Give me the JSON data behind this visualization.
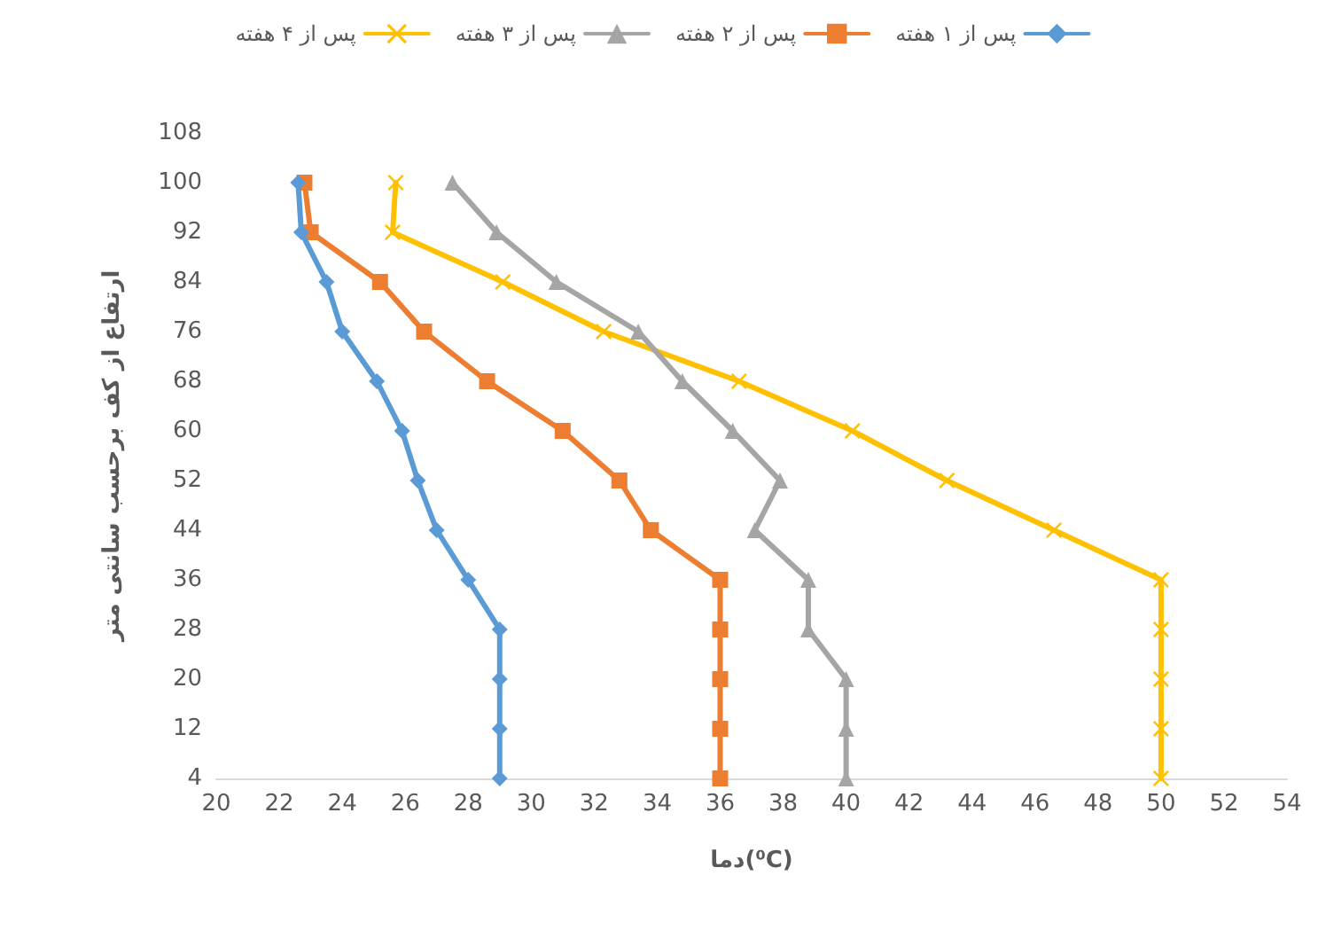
{
  "chart_data": {
    "type": "line",
    "xlabel": "دما(⁰C)",
    "ylabel": "ارتفاع از کف برحسب سانتی متر",
    "xlim": [
      20,
      54
    ],
    "xticks": [
      20,
      22,
      24,
      26,
      28,
      30,
      32,
      34,
      36,
      38,
      40,
      42,
      44,
      46,
      48,
      50,
      52,
      54
    ],
    "ylim": [
      4,
      108
    ],
    "yticks": [
      4,
      12,
      20,
      28,
      36,
      44,
      52,
      60,
      68,
      76,
      84,
      92,
      100,
      108
    ],
    "grid": false,
    "legend": "top",
    "series": [
      {
        "name": "پس از ۱ هفته",
        "color": "#5b9bd5",
        "marker": "diamond",
        "x": [
          29,
          29,
          29,
          29,
          28,
          27,
          26.4,
          25.9,
          25.1,
          24,
          23.5,
          22.7,
          22.6
        ],
        "values": [
          4,
          12,
          20,
          28,
          36,
          44,
          52,
          60,
          68,
          76,
          84,
          92,
          100
        ]
      },
      {
        "name": "پس از ۲ هفته",
        "color": "#ed7d31",
        "marker": "square",
        "x": [
          36,
          36,
          36,
          36,
          36,
          33.8,
          32.8,
          31,
          28.6,
          26.6,
          25.2,
          23,
          22.8
        ],
        "values": [
          4,
          12,
          20,
          28,
          36,
          44,
          52,
          60,
          68,
          76,
          84,
          92,
          100
        ]
      },
      {
        "name": "پس از ۳ هفته",
        "color": "#a5a5a5",
        "marker": "triangle",
        "x": [
          40,
          40,
          40,
          38.8,
          38.8,
          37.1,
          37.9,
          36.4,
          34.8,
          33.4,
          30.8,
          28.9,
          27.5
        ],
        "values": [
          4,
          12,
          20,
          28,
          36,
          44,
          52,
          60,
          68,
          76,
          84,
          92,
          100
        ]
      },
      {
        "name": "پس از ۴ هفته",
        "color": "#ffc000",
        "marker": "cross",
        "x": [
          50,
          50,
          50,
          50,
          50,
          46.6,
          43.2,
          40.2,
          36.6,
          32.3,
          29.1,
          25.6,
          25.7
        ],
        "values": [
          4,
          12,
          20,
          28,
          36,
          44,
          52,
          60,
          68,
          76,
          84,
          92,
          100
        ]
      }
    ]
  }
}
